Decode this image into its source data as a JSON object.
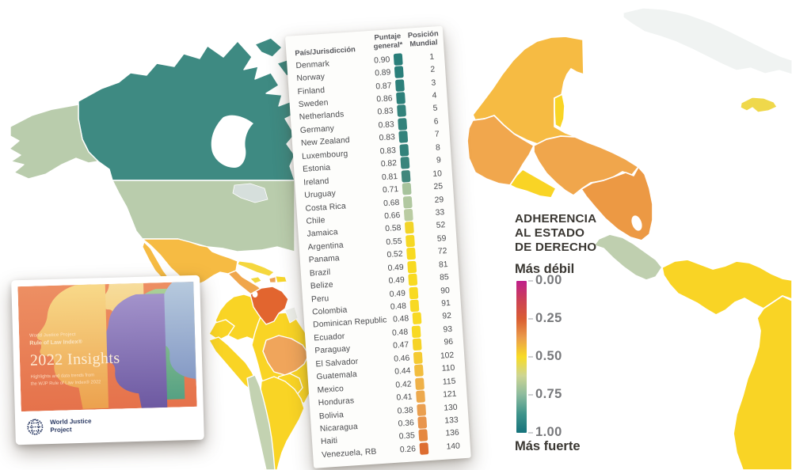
{
  "table": {
    "col_country": "País/Jurisdicción",
    "col_score": "Puntaje general*",
    "col_rank": "Posición Mundial",
    "rows": [
      {
        "country": "Denmark",
        "score": "0.90",
        "rank": "1",
        "color": "#2a7f7a"
      },
      {
        "country": "Norway",
        "score": "0.89",
        "rank": "2",
        "color": "#2a7f7a"
      },
      {
        "country": "Finland",
        "score": "0.87",
        "rank": "3",
        "color": "#2d807a"
      },
      {
        "country": "Sweden",
        "score": "0.86",
        "rank": "4",
        "color": "#2d807a"
      },
      {
        "country": "Netherlands",
        "score": "0.83",
        "rank": "5",
        "color": "#33827b"
      },
      {
        "country": "Germany",
        "score": "0.83",
        "rank": "6",
        "color": "#33827b"
      },
      {
        "country": "New Zealand",
        "score": "0.83",
        "rank": "7",
        "color": "#33827b"
      },
      {
        "country": "Luxembourg",
        "score": "0.83",
        "rank": "8",
        "color": "#33827b"
      },
      {
        "country": "Estonia",
        "score": "0.82",
        "rank": "9",
        "color": "#3a857c"
      },
      {
        "country": "Ireland",
        "score": "0.81",
        "rank": "10",
        "color": "#41877c"
      },
      {
        "country": "Uruguay",
        "score": "0.71",
        "rank": "25",
        "color": "#a7c39c"
      },
      {
        "country": "Costa Rica",
        "score": "0.68",
        "rank": "29",
        "color": "#b1c8a0"
      },
      {
        "country": "Chile",
        "score": "0.66",
        "rank": "33",
        "color": "#bacca2"
      },
      {
        "country": "Jamaica",
        "score": "0.58",
        "rank": "52",
        "color": "#f2d428"
      },
      {
        "country": "Argentina",
        "score": "0.55",
        "rank": "59",
        "color": "#f6d823"
      },
      {
        "country": "Panama",
        "score": "0.52",
        "rank": "72",
        "color": "#f8da21"
      },
      {
        "country": "Brazil",
        "score": "0.49",
        "rank": "81",
        "color": "#f8da21"
      },
      {
        "country": "Belize",
        "score": "0.49",
        "rank": "85",
        "color": "#f8da21"
      },
      {
        "country": "Peru",
        "score": "0.49",
        "rank": "90",
        "color": "#f8da21"
      },
      {
        "country": "Colombia",
        "score": "0.48",
        "rank": "91",
        "color": "#f8d923"
      },
      {
        "country": "Dominican Republic",
        "score": "0.48",
        "rank": "92",
        "color": "#f8d923"
      },
      {
        "country": "Ecuador",
        "score": "0.48",
        "rank": "93",
        "color": "#f8d923"
      },
      {
        "country": "Paraguay",
        "score": "0.47",
        "rank": "96",
        "color": "#f6d326"
      },
      {
        "country": "El Salvador",
        "score": "0.46",
        "rank": "102",
        "color": "#f5ca31"
      },
      {
        "country": "Guatemala",
        "score": "0.44",
        "rank": "110",
        "color": "#f2bd3e"
      },
      {
        "country": "Mexico",
        "score": "0.42",
        "rank": "115",
        "color": "#efb148"
      },
      {
        "country": "Honduras",
        "score": "0.41",
        "rank": "121",
        "color": "#eda94d"
      },
      {
        "country": "Bolivia",
        "score": "0.38",
        "rank": "130",
        "color": "#ea9f50"
      },
      {
        "country": "Nicaragua",
        "score": "0.36",
        "rank": "133",
        "color": "#e8954d"
      },
      {
        "country": "Haiti",
        "score": "0.35",
        "rank": "136",
        "color": "#e58840"
      },
      {
        "country": "Venezuela, RB",
        "score": "0.26",
        "rank": "140",
        "color": "#dd6d30"
      }
    ]
  },
  "legend": {
    "title_lines": [
      "ADHERENCIA",
      "AL ESTADO",
      "DE DERECHO"
    ],
    "weak_label": "Más débil",
    "strong_label": "Más fuerte",
    "scale_labels": [
      "0.00",
      "0.25",
      "0.50",
      "0.75",
      "1.00"
    ],
    "gradient_colors": [
      "#bf1f8c",
      "#cc4156",
      "#d95d33",
      "#eb9d4a",
      "#f8dc25",
      "#cdd593",
      "#8cbb9e",
      "#3f948b",
      "#16737c"
    ]
  },
  "cover": {
    "kicker": "World Justice Project",
    "index_title": "Rule of Law Index®",
    "main_title": "2022 Insights",
    "subtitle_lines": [
      "Highlights and data trends from",
      "the WJP Rule of Law Index® 2022"
    ],
    "logo_lines": [
      "World Justice",
      "Project"
    ]
  },
  "map": {
    "colors": {
      "canada": "#3e8a82",
      "alaska": "#b9ccac",
      "usa": "#b9ccac",
      "great_lakes": "#d6dfdc",
      "mexico_small": "#f6bb43",
      "central_america_small": "#f0a64c",
      "costa_rica_small": "#bfcfaf",
      "panama_small": "#f9d425",
      "cuba_small": "#f5d73e",
      "jamaica_small": "#f2d93f",
      "haiti_small": "#eca355",
      "dr_small": "#f7d62c",
      "colombia": "#f9d425",
      "venezuela": "#e2652f",
      "guyanas": "#edefea",
      "ecuador": "#f9d425",
      "peru": "#f9d425",
      "brazil": "#f9d425",
      "bolivia": "#f0a55b",
      "paraguay": "#f9d425",
      "uruguay": "#bccda4",
      "chile": "#c3d2b1",
      "argentina": "#f9d425",
      "mexico_big": "#f6bb43",
      "belize_big": "#f9d425",
      "guatemala_big": "#f1a74d",
      "honduras_big": "#f0a64c",
      "el_salvador_big": "#f9d425",
      "nicaragua_big": "#ec9944",
      "costa_rica_big": "#bfcfaf",
      "panama_big": "#f9d425",
      "colombia_big": "#f9d425",
      "cuba_big": "#f0f3f2",
      "jamaica_big": "#efd84b"
    }
  },
  "chart_data": {
    "type": "table",
    "title": "WJP Rule of Law Index 2022 — puntajes y posición mundial (Américas y top 10)",
    "columns": [
      "País/Jurisdicción",
      "Puntaje general",
      "Posición Mundial"
    ],
    "rows": [
      [
        "Denmark",
        0.9,
        1
      ],
      [
        "Norway",
        0.89,
        2
      ],
      [
        "Finland",
        0.87,
        3
      ],
      [
        "Sweden",
        0.86,
        4
      ],
      [
        "Netherlands",
        0.83,
        5
      ],
      [
        "Germany",
        0.83,
        6
      ],
      [
        "New Zealand",
        0.83,
        7
      ],
      [
        "Luxembourg",
        0.83,
        8
      ],
      [
        "Estonia",
        0.82,
        9
      ],
      [
        "Ireland",
        0.81,
        10
      ],
      [
        "Uruguay",
        0.71,
        25
      ],
      [
        "Costa Rica",
        0.68,
        29
      ],
      [
        "Chile",
        0.66,
        33
      ],
      [
        "Jamaica",
        0.58,
        52
      ],
      [
        "Argentina",
        0.55,
        59
      ],
      [
        "Panama",
        0.52,
        72
      ],
      [
        "Brazil",
        0.49,
        81
      ],
      [
        "Belize",
        0.49,
        85
      ],
      [
        "Peru",
        0.49,
        90
      ],
      [
        "Colombia",
        0.48,
        91
      ],
      [
        "Dominican Republic",
        0.48,
        92
      ],
      [
        "Ecuador",
        0.48,
        93
      ],
      [
        "Paraguay",
        0.47,
        96
      ],
      [
        "El Salvador",
        0.46,
        102
      ],
      [
        "Guatemala",
        0.44,
        110
      ],
      [
        "Mexico",
        0.42,
        115
      ],
      [
        "Honduras",
        0.41,
        121
      ],
      [
        "Bolivia",
        0.38,
        130
      ],
      [
        "Nicaragua",
        0.36,
        133
      ],
      [
        "Haiti",
        0.35,
        136
      ],
      [
        "Venezuela, RB",
        0.26,
        140
      ]
    ],
    "color_scale": {
      "label": "ADHERENCIA AL ESTADO DE DERECHO",
      "min": 0.0,
      "max": 1.0,
      "min_label": "Más débil",
      "max_label": "Más fuerte",
      "stops": [
        [
          0.0,
          "#bf1f8c"
        ],
        [
          0.25,
          "#d95d33"
        ],
        [
          0.5,
          "#f8dc25"
        ],
        [
          0.75,
          "#8cbb9e"
        ],
        [
          1.0,
          "#16737c"
        ]
      ]
    }
  }
}
